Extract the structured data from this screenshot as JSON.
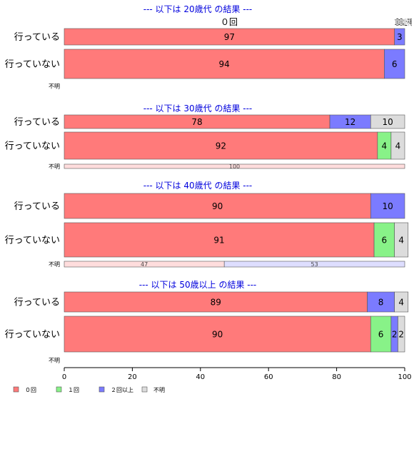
{
  "chart_data": {
    "type": "bar",
    "orientation": "horizontal",
    "stacked": true,
    "xlim": [
      0,
      100
    ],
    "x_ticks": [
      0,
      20,
      40,
      60,
      80,
      100
    ],
    "legend": {
      "placement": "bottom-left",
      "entries": [
        {
          "label": "０回",
          "color": "#ff7a7a"
        },
        {
          "label": "１回",
          "color": "#88f288"
        },
        {
          "label": "２回以上",
          "color": "#7b7bff"
        },
        {
          "label": "不明",
          "color": "#dcdcdc"
        }
      ]
    },
    "title_color": "#0000dd",
    "top_header_label": "０回",
    "panels": [
      {
        "title": "--- 以下は 20歳代 の結果 ---",
        "rows": [
          {
            "label": "行っている",
            "values": [
              97,
              0,
              3,
              0
            ],
            "value_labels": [
              "97",
              "",
              "3",
              ""
            ]
          },
          {
            "label": "行っていない",
            "values": [
              94,
              0,
              6,
              0
            ],
            "value_labels": [
              "94",
              "",
              "6",
              ""
            ]
          },
          {
            "label": "不明",
            "values": [
              0,
              0,
              0,
              0
            ],
            "value_labels": [
              "",
              "",
              "",
              ""
            ]
          }
        ],
        "header_label_clipped": "1回2回以上不明"
      },
      {
        "title": "--- 以下は 30歳代 の結果 ---",
        "rows": [
          {
            "label": "行っている",
            "values": [
              78,
              0,
              12,
              10
            ],
            "value_labels": [
              "78",
              "",
              "12",
              "10"
            ]
          },
          {
            "label": "行っていない",
            "values": [
              92,
              4,
              0,
              4
            ],
            "value_labels": [
              "92",
              "4",
              "",
              "4"
            ]
          },
          {
            "label": "不明",
            "values": [
              100,
              0,
              0,
              0
            ],
            "value_labels": [
              "100",
              "",
              "",
              ""
            ]
          }
        ]
      },
      {
        "title": "--- 以下は 40歳代 の結果 ---",
        "rows": [
          {
            "label": "行っている",
            "values": [
              90,
              0,
              10,
              0
            ],
            "value_labels": [
              "90",
              "",
              "10",
              ""
            ]
          },
          {
            "label": "行っていない",
            "values": [
              91,
              6,
              0,
              4
            ],
            "value_labels": [
              "91",
              "6",
              "",
              "4"
            ]
          },
          {
            "label": "不明",
            "values": [
              47,
              0,
              53,
              0
            ],
            "value_labels": [
              "47",
              "",
              "53",
              ""
            ]
          }
        ]
      },
      {
        "title": "--- 以下は 50歳以上 の結果 ---",
        "rows": [
          {
            "label": "行っている",
            "values": [
              89,
              0,
              8,
              4
            ],
            "value_labels": [
              "89",
              "",
              "8",
              "4"
            ]
          },
          {
            "label": "行っていない",
            "values": [
              90,
              6,
              2,
              2
            ],
            "value_labels": [
              "90",
              "6",
              "2",
              "2"
            ]
          },
          {
            "label": "不明",
            "values": [
              0,
              0,
              0,
              0
            ],
            "value_labels": [
              "",
              "",
              "",
              ""
            ]
          }
        ]
      }
    ]
  }
}
